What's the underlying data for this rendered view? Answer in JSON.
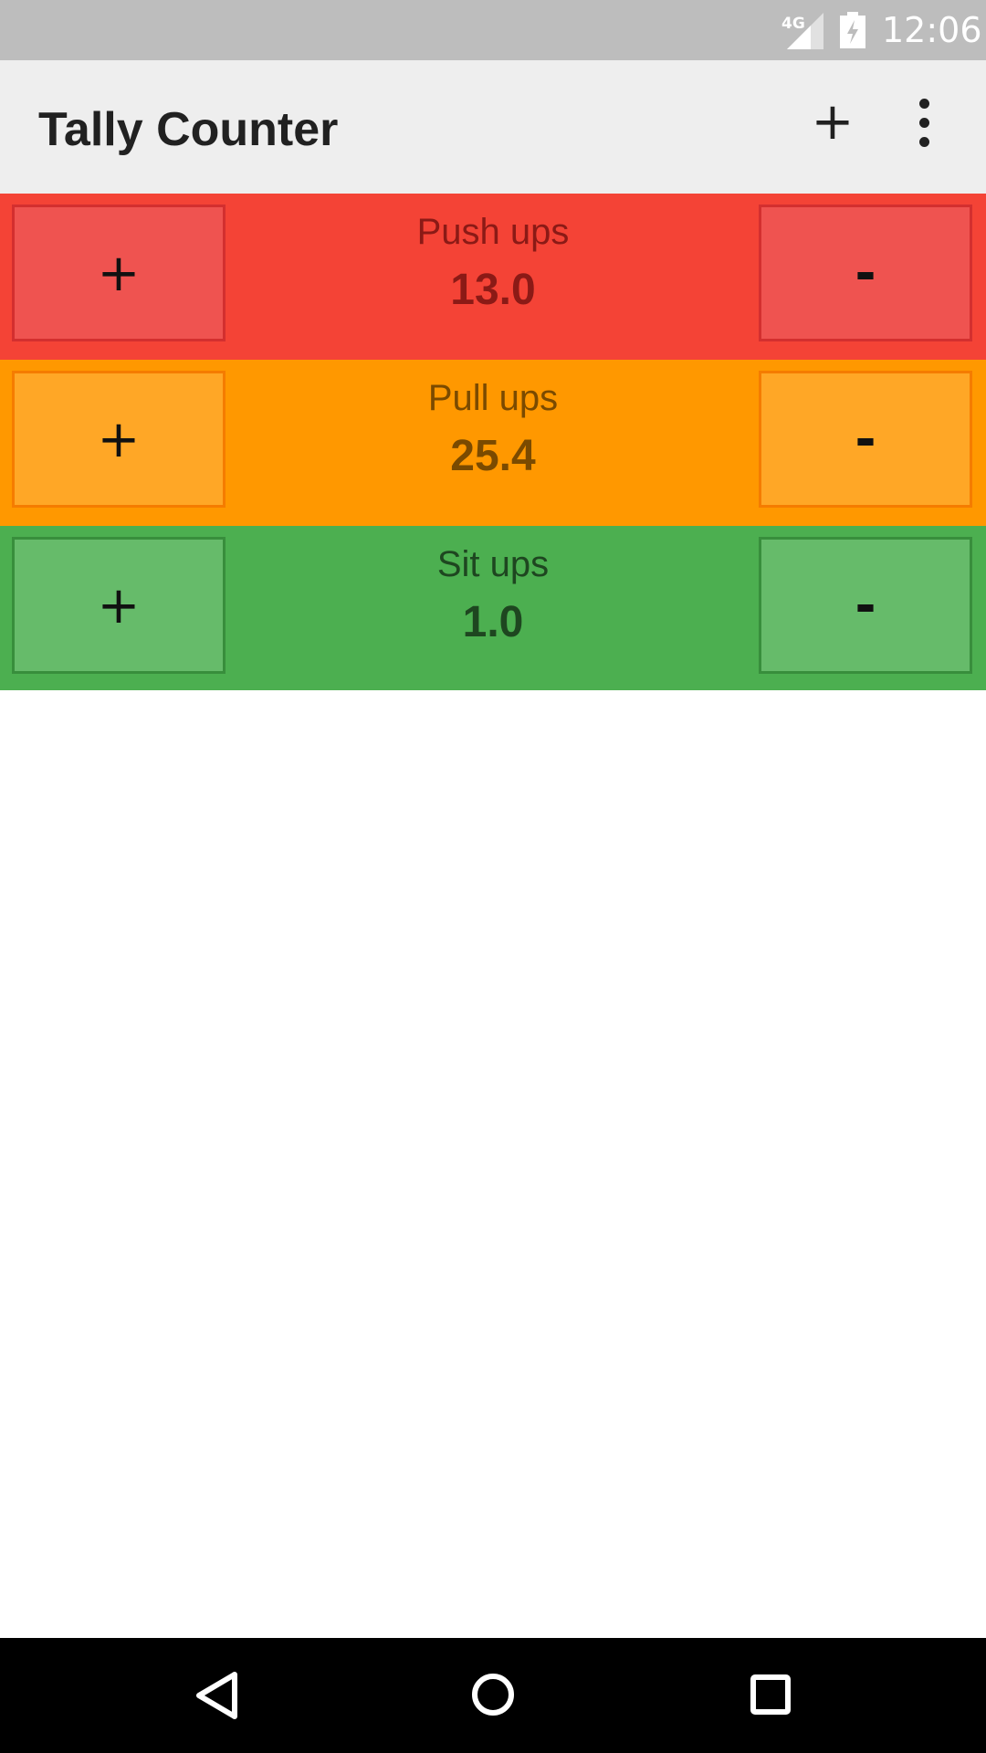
{
  "status_bar": {
    "network": "4G",
    "time": "12:06"
  },
  "app_bar": {
    "title": "Tally Counter",
    "add_label": "+"
  },
  "counters": [
    {
      "name": "Push ups",
      "value": "13.0",
      "plus_label": "+",
      "minus_label": "-",
      "bg_color": "#f44336",
      "button_color": "#ef5350",
      "border_color": "#d32f2f",
      "text_color": "#8b1a16"
    },
    {
      "name": "Pull ups",
      "value": "25.4",
      "plus_label": "+",
      "minus_label": "-",
      "bg_color": "#ff9800",
      "button_color": "#ffa726",
      "border_color": "#f57c00",
      "text_color": "#7a4a00"
    },
    {
      "name": "Sit ups",
      "value": "1.0",
      "plus_label": "+",
      "minus_label": "-",
      "bg_color": "#4caf50",
      "button_color": "#66bb6a",
      "border_color": "#388e3c",
      "text_color": "#1e4620"
    }
  ],
  "icons": {
    "overflow": "more-vertical-icon",
    "back": "back-triangle-icon",
    "home": "home-circle-icon",
    "recents": "recents-square-icon"
  }
}
